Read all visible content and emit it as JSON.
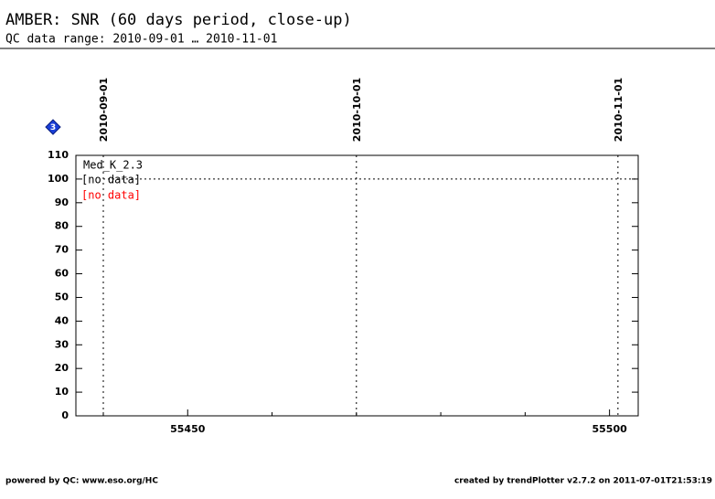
{
  "chart_data": {
    "type": "line",
    "title": "AMBER: SNR (60 days period, close-up)",
    "subtitle": "QC data range: 2010-09-01 … 2010-11-01",
    "badge": "3",
    "ylim": [
      0,
      110
    ],
    "yticks": [
      0,
      10,
      20,
      30,
      40,
      50,
      60,
      70,
      80,
      90,
      100,
      110
    ],
    "xlim": [
      55436.75,
      55503.4
    ],
    "xticks": [
      55450,
      55500
    ],
    "x_minor_ticks": [
      55440,
      55460,
      55470,
      55480,
      55490
    ],
    "date_markers": [
      {
        "label": "2010-09-01",
        "x": 55440
      },
      {
        "label": "2010-10-01",
        "x": 55470
      },
      {
        "label": "2010-11-01",
        "x": 55501
      }
    ],
    "reference_line": 100,
    "legend_title": "Med_K_2.3",
    "series": [
      {
        "name": "[no data]",
        "color": "#000000",
        "x": [],
        "values": []
      },
      {
        "name": "[no data]",
        "color": "#ff0000",
        "x": [],
        "values": []
      }
    ],
    "footer_left": "powered by QC: www.eso.org/HC",
    "footer_right": "created by trendPlotter v2.7.2 on 2011-07-01T21:53:19"
  }
}
